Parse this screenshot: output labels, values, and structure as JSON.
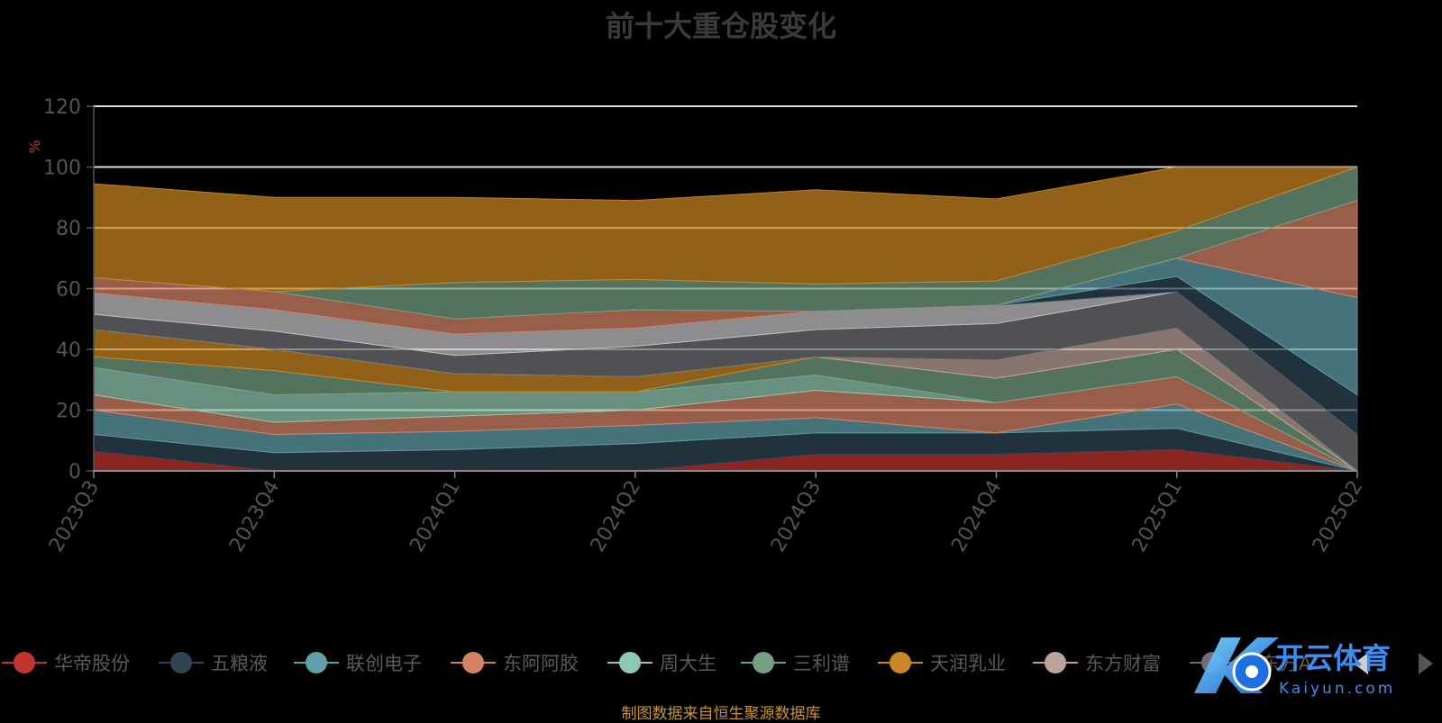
{
  "chart_data": {
    "type": "area",
    "title": "前十大重仓股变化",
    "ylabel": "%",
    "ylim": [
      0,
      120
    ],
    "yticks": [
      0,
      20,
      40,
      60,
      80,
      100,
      120
    ],
    "categories": [
      "2023Q3",
      "2023Q4",
      "2024Q1",
      "2024Q2",
      "2024Q3",
      "2024Q4",
      "2025Q1",
      "2025Q2"
    ],
    "grid": true,
    "legend_position": "bottom",
    "series": [
      {
        "name": "华帝股份",
        "color": "#c23531",
        "values": [
          6.5,
          0,
          0,
          0,
          5.5,
          5.5,
          7,
          0
        ]
      },
      {
        "name": "五粮液",
        "color": "#2f4554",
        "values": [
          5.5,
          6,
          7,
          9,
          7,
          7,
          7,
          0
        ]
      },
      {
        "name": "联创电子",
        "color": "#61a0a8",
        "values": [
          8,
          6,
          6,
          6,
          5,
          0,
          8,
          0
        ]
      },
      {
        "name": "东阿阿胶",
        "color": "#d48265",
        "values": [
          5,
          4,
          5,
          5,
          9,
          10,
          9,
          0
        ]
      },
      {
        "name": "周大生",
        "color": "#91c7ae",
        "values": [
          9,
          9,
          8,
          6,
          5,
          0,
          0,
          0
        ]
      },
      {
        "name": "三利谱",
        "color": "#749f83",
        "values": [
          3.5,
          8,
          0,
          0,
          6,
          8,
          9,
          0
        ]
      },
      {
        "name": "天润乳业",
        "color": "#ca8622",
        "values": [
          9,
          7,
          6,
          5,
          0,
          0,
          0,
          0
        ]
      },
      {
        "name": "东方财富",
        "color": "#bda29a",
        "values": [
          0,
          0,
          0,
          0,
          0,
          6,
          7,
          0
        ]
      },
      {
        "name": "京东方A",
        "color": "#6e7074",
        "values": [
          5,
          6,
          6,
          10,
          9,
          12,
          12,
          12
        ]
      },
      {
        "name": "",
        "color": "#c4c4c8",
        "values": [
          7,
          7,
          7,
          6,
          6,
          6,
          0,
          0
        ]
      },
      {
        "name": "",
        "color": "#2f4554",
        "values": [
          0,
          0,
          0,
          0,
          0,
          0,
          5,
          13
        ]
      },
      {
        "name": "",
        "color": "#61a0a8",
        "values": [
          0,
          0,
          0,
          0,
          0,
          0,
          6,
          32
        ]
      },
      {
        "name": "",
        "color": "#d48265",
        "values": [
          5,
          6,
          5,
          6,
          0,
          0,
          0,
          32
        ]
      },
      {
        "name": "",
        "color": "#749f83",
        "values": [
          0,
          0,
          12,
          10,
          9,
          8,
          9,
          11
        ]
      },
      {
        "name": "",
        "color": "#ca8622",
        "values": [
          31,
          31,
          28,
          26,
          31,
          27,
          21,
          0
        ]
      }
    ]
  },
  "legend_items": [
    {
      "label": "华帝股份",
      "color": "#c23531"
    },
    {
      "label": "五粮液",
      "color": "#2f4554"
    },
    {
      "label": "联创电子",
      "color": "#61a0a8"
    },
    {
      "label": "东阿阿胶",
      "color": "#d48265"
    },
    {
      "label": "周大生",
      "color": "#91c7ae"
    },
    {
      "label": "三利谱",
      "color": "#749f83"
    },
    {
      "label": "天润乳业",
      "color": "#ca8622"
    },
    {
      "label": "东方财富",
      "color": "#bda29a"
    },
    {
      "label": "京东方A",
      "color": "#6e7074"
    }
  ],
  "source_note": "制图数据来自恒生聚源数据库",
  "watermark": {
    "brand_cn": "开云体育",
    "brand_en": "Kaiyun.com"
  }
}
